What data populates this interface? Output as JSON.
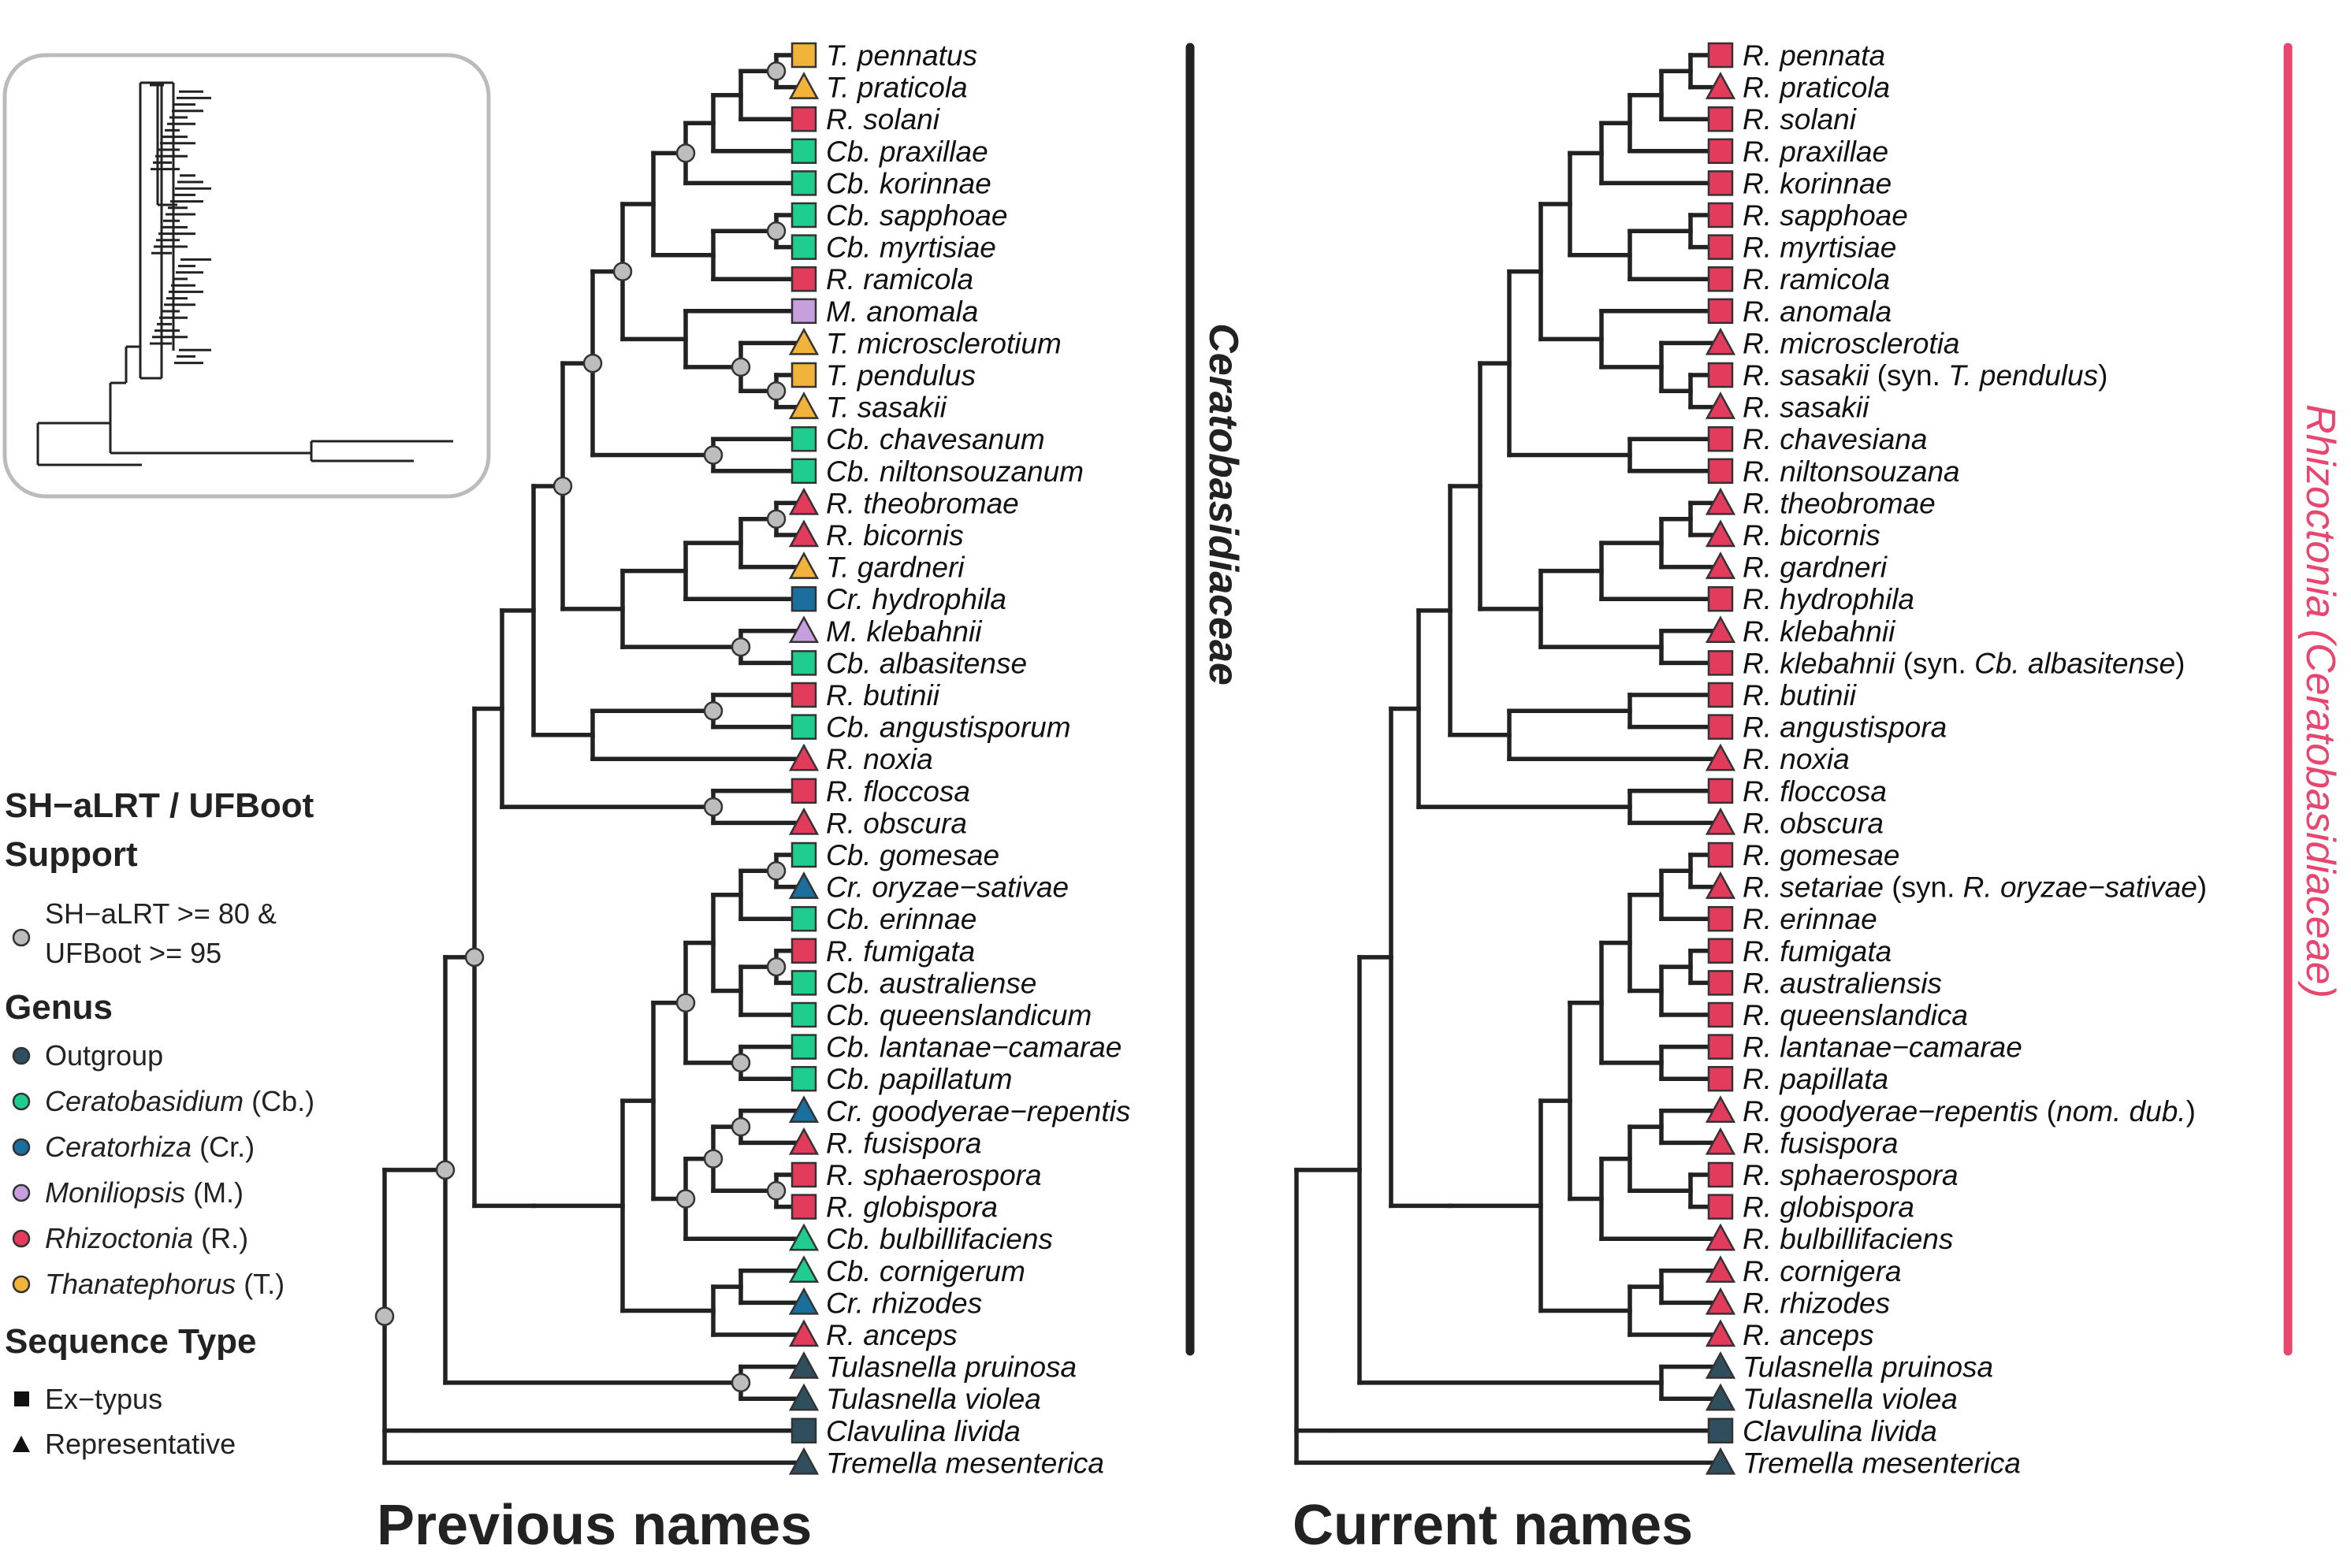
{
  "colors": {
    "Outgroup": "#2f4f5f",
    "Ceratobasidium": "#1fce8e",
    "Ceratorhiza": "#1a6f9f",
    "Moniliopsis": "#c79fdc",
    "Rhizoctonia": "#e23b5c",
    "Thanatephorus": "#f2b33a",
    "accent_pink": "#e8466e",
    "branch": "#222222"
  },
  "titles": {
    "left": "Previous names",
    "right": "Current names"
  },
  "clade_labels": {
    "left": "Ceratobasidiaceae",
    "right_genus": "Rhizoctonia",
    "right_family": "(Ceratobasidiaceae)"
  },
  "legend": {
    "support_title_line1": "SH−aLRT / UFBoot",
    "support_title_line2": "Support",
    "support_item_line1": "SH−aLRT >= 80 &",
    "support_item_line2": "UFBoot >= 95",
    "genus_title": "Genus",
    "genera": [
      {
        "genus": "Outgroup",
        "abbr": "",
        "color": "#2f4f5f"
      },
      {
        "genus": "Ceratobasidium",
        "abbr": "(Cb.)",
        "color": "#1fce8e"
      },
      {
        "genus": "Ceratorhiza",
        "abbr": "(Cr.)",
        "color": "#1a6f9f"
      },
      {
        "genus": "Moniliopsis",
        "abbr": "(M.)",
        "color": "#c79fdc"
      },
      {
        "genus": "Rhizoctonia",
        "abbr": "(R.)",
        "color": "#e23b5c"
      },
      {
        "genus": "Thanatephorus",
        "abbr": "(T.)",
        "color": "#f2b33a"
      }
    ],
    "seqtype_title": "Sequence Type",
    "seqtypes": [
      {
        "label": "Ex−typus",
        "shape": "square"
      },
      {
        "label": "Representative",
        "shape": "triangle"
      }
    ]
  },
  "tree": {
    "tips": [
      {
        "prev": [
          "T.",
          " pennatus"
        ],
        "prev_genus": "Thanatephorus",
        "curr": [
          [
            "R. pennata",
            true
          ]
        ],
        "curr_genus": "Rhizoctonia",
        "shape": "square"
      },
      {
        "prev": [
          "T.",
          " praticola"
        ],
        "prev_genus": "Thanatephorus",
        "curr": [
          [
            "R. praticola",
            true
          ]
        ],
        "curr_genus": "Rhizoctonia",
        "shape": "triangle"
      },
      {
        "prev": [
          "R.",
          " solani"
        ],
        "prev_genus": "Rhizoctonia",
        "curr": [
          [
            "R. solani",
            true
          ]
        ],
        "curr_genus": "Rhizoctonia",
        "shape": "square"
      },
      {
        "prev": [
          "Cb.",
          " praxillae"
        ],
        "prev_genus": "Ceratobasidium",
        "curr": [
          [
            "R. praxillae",
            true
          ]
        ],
        "curr_genus": "Rhizoctonia",
        "shape": "square"
      },
      {
        "prev": [
          "Cb.",
          " korinnae"
        ],
        "prev_genus": "Ceratobasidium",
        "curr": [
          [
            "R. korinnae",
            true
          ]
        ],
        "curr_genus": "Rhizoctonia",
        "shape": "square"
      },
      {
        "prev": [
          "Cb.",
          " sapphoae"
        ],
        "prev_genus": "Ceratobasidium",
        "curr": [
          [
            "R. sapphoae",
            true
          ]
        ],
        "curr_genus": "Rhizoctonia",
        "shape": "square"
      },
      {
        "prev": [
          "Cb.",
          " myrtisiae"
        ],
        "prev_genus": "Ceratobasidium",
        "curr": [
          [
            "R. myrtisiae",
            true
          ]
        ],
        "curr_genus": "Rhizoctonia",
        "shape": "square"
      },
      {
        "prev": [
          "R.",
          " ramicola"
        ],
        "prev_genus": "Rhizoctonia",
        "curr": [
          [
            "R. ramicola",
            true
          ]
        ],
        "curr_genus": "Rhizoctonia",
        "shape": "square"
      },
      {
        "prev": [
          "M.",
          " anomala"
        ],
        "prev_genus": "Moniliopsis",
        "curr": [
          [
            "R. anomala",
            true
          ]
        ],
        "curr_genus": "Rhizoctonia",
        "shape": "square"
      },
      {
        "prev": [
          "T.",
          " microsclerotium"
        ],
        "prev_genus": "Thanatephorus",
        "curr": [
          [
            "R. microsclerotia",
            true
          ]
        ],
        "curr_genus": "Rhizoctonia",
        "shape": "triangle"
      },
      {
        "prev": [
          "T.",
          " pendulus"
        ],
        "prev_genus": "Thanatephorus",
        "curr": [
          [
            "R. sasakii",
            true
          ],
          [
            " (syn. ",
            false
          ],
          [
            "T. pendulus",
            true
          ],
          [
            ")",
            false
          ]
        ],
        "curr_genus": "Rhizoctonia",
        "shape": "square"
      },
      {
        "prev": [
          "T.",
          " sasakii"
        ],
        "prev_genus": "Thanatephorus",
        "curr": [
          [
            "R. sasakii",
            true
          ]
        ],
        "curr_genus": "Rhizoctonia",
        "shape": "triangle"
      },
      {
        "prev": [
          "Cb.",
          " chavesanum"
        ],
        "prev_genus": "Ceratobasidium",
        "curr": [
          [
            "R. chavesiana",
            true
          ]
        ],
        "curr_genus": "Rhizoctonia",
        "shape": "square"
      },
      {
        "prev": [
          "Cb.",
          " niltonsouzanum"
        ],
        "prev_genus": "Ceratobasidium",
        "curr": [
          [
            "R. niltonsouzana",
            true
          ]
        ],
        "curr_genus": "Rhizoctonia",
        "shape": "square"
      },
      {
        "prev": [
          "R.",
          " theobromae"
        ],
        "prev_genus": "Rhizoctonia",
        "curr": [
          [
            "R. theobromae",
            true
          ]
        ],
        "curr_genus": "Rhizoctonia",
        "shape": "triangle"
      },
      {
        "prev": [
          "R.",
          " bicornis"
        ],
        "prev_genus": "Rhizoctonia",
        "curr": [
          [
            "R. bicornis",
            true
          ]
        ],
        "curr_genus": "Rhizoctonia",
        "shape": "triangle"
      },
      {
        "prev": [
          "T.",
          " gardneri"
        ],
        "prev_genus": "Thanatephorus",
        "curr": [
          [
            "R. gardneri",
            true
          ]
        ],
        "curr_genus": "Rhizoctonia",
        "shape": "triangle"
      },
      {
        "prev": [
          "Cr.",
          " hydrophila"
        ],
        "prev_genus": "Ceratorhiza",
        "curr": [
          [
            "R. hydrophila",
            true
          ]
        ],
        "curr_genus": "Rhizoctonia",
        "shape": "square"
      },
      {
        "prev": [
          "M.",
          " klebahnii"
        ],
        "prev_genus": "Moniliopsis",
        "curr": [
          [
            "R. klebahnii",
            true
          ]
        ],
        "curr_genus": "Rhizoctonia",
        "shape": "triangle"
      },
      {
        "prev": [
          "Cb.",
          " albasitense"
        ],
        "prev_genus": "Ceratobasidium",
        "curr": [
          [
            "R. klebahnii",
            true
          ],
          [
            " (syn. ",
            false
          ],
          [
            "Cb. albasitense",
            true
          ],
          [
            ")",
            false
          ]
        ],
        "curr_genus": "Rhizoctonia",
        "shape": "square"
      },
      {
        "prev": [
          "R.",
          " butinii"
        ],
        "prev_genus": "Rhizoctonia",
        "curr": [
          [
            "R. butinii",
            true
          ]
        ],
        "curr_genus": "Rhizoctonia",
        "shape": "square"
      },
      {
        "prev": [
          "Cb.",
          " angustisporum"
        ],
        "prev_genus": "Ceratobasidium",
        "curr": [
          [
            "R. angustispora",
            true
          ]
        ],
        "curr_genus": "Rhizoctonia",
        "shape": "square"
      },
      {
        "prev": [
          "R.",
          " noxia"
        ],
        "prev_genus": "Rhizoctonia",
        "curr": [
          [
            "R. noxia",
            true
          ]
        ],
        "curr_genus": "Rhizoctonia",
        "shape": "triangle"
      },
      {
        "prev": [
          "R.",
          " floccosa"
        ],
        "prev_genus": "Rhizoctonia",
        "curr": [
          [
            "R. floccosa",
            true
          ]
        ],
        "curr_genus": "Rhizoctonia",
        "shape": "square"
      },
      {
        "prev": [
          "R.",
          " obscura"
        ],
        "prev_genus": "Rhizoctonia",
        "curr": [
          [
            "R. obscura",
            true
          ]
        ],
        "curr_genus": "Rhizoctonia",
        "shape": "triangle"
      },
      {
        "prev": [
          "Cb.",
          " gomesae"
        ],
        "prev_genus": "Ceratobasidium",
        "curr": [
          [
            "R. gomesae",
            true
          ]
        ],
        "curr_genus": "Rhizoctonia",
        "shape": "square"
      },
      {
        "prev": [
          "Cr.",
          " oryzae−sativae"
        ],
        "prev_genus": "Ceratorhiza",
        "curr": [
          [
            "R. setariae",
            true
          ],
          [
            " (syn. ",
            false
          ],
          [
            "R. oryzae−sativae",
            true
          ],
          [
            ")",
            false
          ]
        ],
        "curr_genus": "Rhizoctonia",
        "shape": "triangle"
      },
      {
        "prev": [
          "Cb.",
          " erinnae"
        ],
        "prev_genus": "Ceratobasidium",
        "curr": [
          [
            "R. erinnae",
            true
          ]
        ],
        "curr_genus": "Rhizoctonia",
        "shape": "square"
      },
      {
        "prev": [
          "R.",
          " fumigata"
        ],
        "prev_genus": "Rhizoctonia",
        "curr": [
          [
            "R. fumigata",
            true
          ]
        ],
        "curr_genus": "Rhizoctonia",
        "shape": "square"
      },
      {
        "prev": [
          "Cb.",
          " australiense"
        ],
        "prev_genus": "Ceratobasidium",
        "curr": [
          [
            "R. australiensis",
            true
          ]
        ],
        "curr_genus": "Rhizoctonia",
        "shape": "square"
      },
      {
        "prev": [
          "Cb.",
          " queenslandicum"
        ],
        "prev_genus": "Ceratobasidium",
        "curr": [
          [
            "R. queenslandica",
            true
          ]
        ],
        "curr_genus": "Rhizoctonia",
        "shape": "square"
      },
      {
        "prev": [
          "Cb.",
          " lantanae−camarae"
        ],
        "prev_genus": "Ceratobasidium",
        "curr": [
          [
            "R. lantanae−camarae",
            true
          ]
        ],
        "curr_genus": "Rhizoctonia",
        "shape": "square"
      },
      {
        "prev": [
          "Cb.",
          " papillatum"
        ],
        "prev_genus": "Ceratobasidium",
        "curr": [
          [
            "R. papillata",
            true
          ]
        ],
        "curr_genus": "Rhizoctonia",
        "shape": "square"
      },
      {
        "prev": [
          "Cr.",
          " goodyerae−repentis"
        ],
        "prev_genus": "Ceratorhiza",
        "curr": [
          [
            "R. goodyerae−repentis",
            true
          ],
          [
            " (",
            false
          ],
          [
            "nom. dub.",
            true
          ],
          [
            ")",
            false
          ]
        ],
        "curr_genus": "Rhizoctonia",
        "shape": "triangle"
      },
      {
        "prev": [
          "R.",
          " fusispora"
        ],
        "prev_genus": "Rhizoctonia",
        "curr": [
          [
            "R. fusispora",
            true
          ]
        ],
        "curr_genus": "Rhizoctonia",
        "shape": "triangle"
      },
      {
        "prev": [
          "R.",
          " sphaerospora"
        ],
        "prev_genus": "Rhizoctonia",
        "curr": [
          [
            "R. sphaerospora",
            true
          ]
        ],
        "curr_genus": "Rhizoctonia",
        "shape": "square"
      },
      {
        "prev": [
          "R.",
          " globispora"
        ],
        "prev_genus": "Rhizoctonia",
        "curr": [
          [
            "R. globispora",
            true
          ]
        ],
        "curr_genus": "Rhizoctonia",
        "shape": "square"
      },
      {
        "prev": [
          "Cb.",
          " bulbillifaciens"
        ],
        "prev_genus": "Ceratobasidium",
        "curr": [
          [
            "R. bulbillifaciens",
            true
          ]
        ],
        "curr_genus": "Rhizoctonia",
        "shape": "triangle"
      },
      {
        "prev": [
          "Cb.",
          " cornigerum"
        ],
        "prev_genus": "Ceratobasidium",
        "curr": [
          [
            "R. cornigera",
            true
          ]
        ],
        "curr_genus": "Rhizoctonia",
        "shape": "triangle"
      },
      {
        "prev": [
          "Cr.",
          " rhizodes"
        ],
        "prev_genus": "Ceratorhiza",
        "curr": [
          [
            "R. rhizodes",
            true
          ]
        ],
        "curr_genus": "Rhizoctonia",
        "shape": "triangle"
      },
      {
        "prev": [
          "R.",
          " anceps"
        ],
        "prev_genus": "Rhizoctonia",
        "curr": [
          [
            "R. anceps",
            true
          ]
        ],
        "curr_genus": "Rhizoctonia",
        "shape": "triangle"
      },
      {
        "prev": [
          "Tulasnella",
          " pruinosa"
        ],
        "prev_genus": "Outgroup",
        "curr": [
          [
            "Tulasnella pruinosa",
            true
          ]
        ],
        "curr_genus": "Outgroup",
        "shape": "triangle"
      },
      {
        "prev": [
          "Tulasnella",
          " violea"
        ],
        "prev_genus": "Outgroup",
        "curr": [
          [
            "Tulasnella violea",
            true
          ]
        ],
        "curr_genus": "Outgroup",
        "shape": "triangle"
      },
      {
        "prev": [
          "Clavulina",
          " livida"
        ],
        "prev_genus": "Outgroup",
        "curr": [
          [
            "Clavulina livida",
            true
          ]
        ],
        "curr_genus": "Outgroup",
        "shape": "square"
      },
      {
        "prev": [
          "Tremella",
          " mesenterica"
        ],
        "prev_genus": "Outgroup",
        "curr": [
          [
            "Tremella mesenterica",
            true
          ]
        ],
        "curr_genus": "Outgroup",
        "shape": "triangle"
      }
    ]
  }
}
